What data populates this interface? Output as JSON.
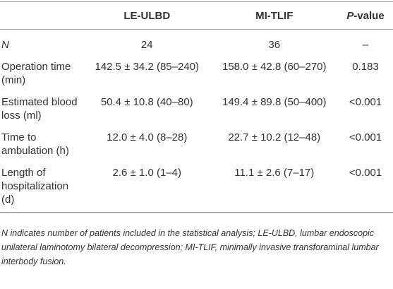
{
  "table": {
    "header": [
      "LE-ULBD",
      "MI-TLIF",
      "P-value"
    ],
    "rows": [
      [
        "N",
        "24",
        "36",
        "–"
      ],
      [
        "Operation time (min)",
        "142.5 ± 34.2 (85–240)",
        "158.0 ± 42.8 (60–270)",
        "0.183"
      ],
      [
        "Estimated blood loss (ml)",
        "50.4 ± 10.8 (40–80)",
        "149.4 ± 89.8 (50–400)",
        "<0.001"
      ],
      [
        "Time to ambulation (h)",
        "12.0 ± 4.0 (8–28)",
        "22.7 ± 10.2 (12–48)",
        "<0.001"
      ],
      [
        "Length of hospitalization (d)",
        "2.6 ± 1.0 (1–4)",
        "11.1 ± 2.6 (7–17)",
        "<0.001"
      ]
    ]
  },
  "footnote": "N indicates number of patients included in the statistical analysis; LE-ULBD, lumbar endoscopic unilateral laminotomy bilateral decompression; MI-TLIF, minimally invasive transforaminal lumbar interbody fusion."
}
